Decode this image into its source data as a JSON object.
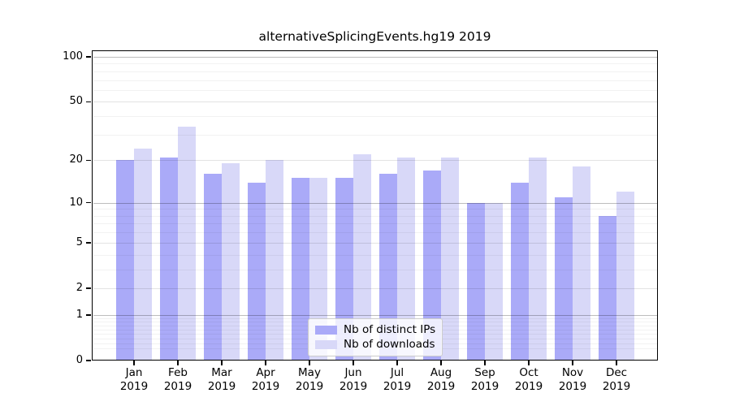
{
  "chart_data": {
    "type": "bar",
    "title": "alternativeSplicingEvents.hg19 2019",
    "categories": [
      "Jan",
      "Feb",
      "Mar",
      "Apr",
      "May",
      "Jun",
      "Jul",
      "Aug",
      "Sep",
      "Oct",
      "Nov",
      "Dec"
    ],
    "x_tick_second_line": "2019",
    "series": [
      {
        "name": "Nb of distinct IPs",
        "color": "#aaaaf8",
        "values": [
          20,
          21,
          16,
          14,
          15,
          15,
          16,
          17,
          10,
          14,
          11,
          8
        ]
      },
      {
        "name": "Nb of downloads",
        "color": "#d8d8f8",
        "values": [
          24,
          34,
          19,
          20,
          15,
          22,
          21,
          21,
          10,
          21,
          18,
          12
        ]
      }
    ],
    "y_axis": {
      "scale": "log1p",
      "tick_values": [
        0,
        1,
        2,
        5,
        10,
        20,
        50,
        100
      ],
      "tick_labels": [
        "0",
        "1",
        "2",
        "5",
        "10",
        "20",
        "50",
        "100"
      ],
      "decade_gridlines": [
        1,
        10,
        100
      ],
      "minor_gridlines": [
        0.2,
        0.3,
        0.4,
        0.5,
        0.6,
        0.7,
        0.8,
        0.9,
        3,
        4,
        6,
        7,
        8,
        9,
        30,
        40,
        60,
        70,
        80,
        90
      ],
      "max": 100
    },
    "legend_position": "lower-center",
    "grid": true,
    "colors": {
      "background": "#ffffff",
      "spine": "#000000",
      "text": "#000000"
    }
  }
}
